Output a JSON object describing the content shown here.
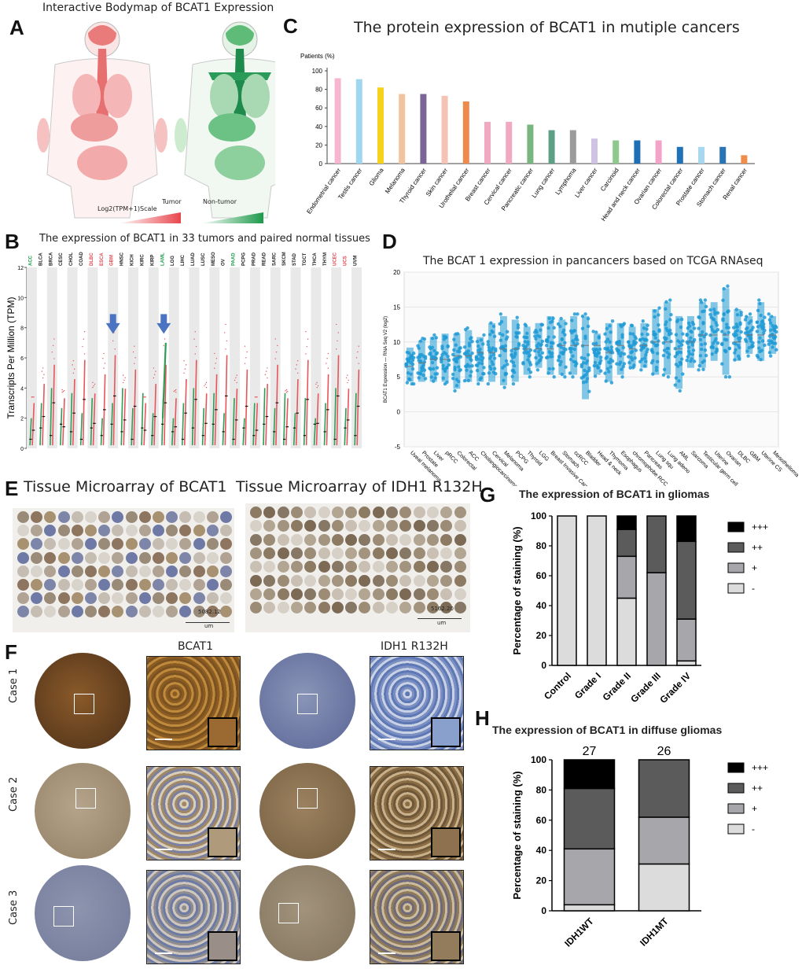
{
  "panels": {
    "A": {
      "label": "A",
      "title": "Interactive Bodymap of BCAT1 Expression",
      "tumor": "Tumor",
      "non_tumor": "Non-tumor",
      "scale": "Log2(TPM+1)Scale"
    },
    "B": {
      "label": "B",
      "title": "The expression of BCAT1 in 33 tumors and paired normal tissues",
      "ylabel": "Transcripts Per Million (TPM)",
      "yticks": [
        "0",
        "2",
        "4",
        "6",
        "8",
        "10",
        "12"
      ],
      "cancers": [
        "ACC",
        "BLCA",
        "BRCA",
        "CESC",
        "CHOL",
        "COAD",
        "DLBC",
        "ESCA",
        "GBM",
        "HNSC",
        "KICH",
        "KIRC",
        "KIRP",
        "LAML",
        "LGG",
        "LIHC",
        "LUAD",
        "LUSC",
        "MESO",
        "OV",
        "PAAD",
        "PCPG",
        "PRAD",
        "READ",
        "SARC",
        "SKCM",
        "STAD",
        "TGCT",
        "THCA",
        "THYM",
        "UCEC",
        "UCS",
        "UVM"
      ],
      "label_colors": {
        "green": [
          "ACC",
          "LAML",
          "PAAD"
        ],
        "red": [
          "DLBC",
          "ESCA",
          "GBM",
          "UCEC",
          "UCS"
        ]
      }
    },
    "C": {
      "label": "C",
      "title": "The protein expression of BCAT1 in mutiple cancers"
    },
    "D": {
      "label": "D",
      "title": "The BCAT 1 expression in pancancers based on TCGA RNAseq",
      "ylabel": "BCAT1 Expression — RNA Seq V2 (log2)"
    },
    "E": {
      "label": "E",
      "title_left": "Tissue Microarray of BCAT1",
      "title_right": "Tissue Microarray of IDH1 R132H",
      "scale_left": "5082.12",
      "scale_right": "5162.20",
      "unit": "um"
    },
    "F": {
      "label": "F",
      "col_bcat1": "BCAT1",
      "col_idh1": "IDH1 R132H",
      "cases": [
        "Case 1",
        "Case 2",
        "Case 3"
      ]
    },
    "G": {
      "label": "G",
      "title": "The expression of BCAT1 in gliomas"
    },
    "H": {
      "label": "H",
      "title": "The expression of BCAT1 in diffuse gliomas"
    }
  },
  "chart_data": [
    {
      "id": "C",
      "type": "bar",
      "ylabel": "Patients (%)",
      "ylim": [
        0,
        100
      ],
      "yticks": [
        0,
        20,
        40,
        60,
        80,
        100
      ],
      "categories": [
        "Endometrial cancer",
        "Testis cancer",
        "Glioma",
        "Melanoma",
        "Thyroid cancer",
        "Skin cancer",
        "Urothelial cancer",
        "Breast cancer",
        "Cervical cancer",
        "Pancreatic cancer",
        "Lung cancer",
        "Lymphoma",
        "Liver cancer",
        "Carcinoid",
        "Head and neck cancer",
        "Ovarian cancer",
        "Colorectal cancer",
        "Prostate cancer",
        "Stomach cancer",
        "Renal cancer"
      ],
      "values": [
        92,
        91,
        82,
        75,
        75,
        73,
        67,
        45,
        45,
        42,
        36,
        36,
        27,
        25,
        25,
        25,
        18,
        18,
        18,
        9
      ],
      "colors": [
        "#f7b6cf",
        "#9fd6f0",
        "#f5d21b",
        "#f2c49e",
        "#7b6596",
        "#f4c3b4",
        "#ef8a4d",
        "#f1a9c1",
        "#f1a9c1",
        "#79b57f",
        "#5e9f85",
        "#9b9b9b",
        "#cfc3e4",
        "#8cc98b",
        "#1e6fb4",
        "#f3a3c8",
        "#1f72b8",
        "#a8d8f0",
        "#2774b6",
        "#ef8d4a"
      ]
    },
    {
      "id": "D",
      "type": "scatter",
      "ylim": [
        -5,
        20
      ],
      "yticks": [
        -5,
        0,
        5,
        10,
        15,
        20
      ],
      "categories": [
        "Uveal melanoma",
        "Prostate",
        "Liver",
        "pRCC",
        "Colorectal",
        "ACC",
        "Cholangiocarcinoma",
        "Cervical",
        "Melanoma",
        "PCPG",
        "Thyroid",
        "LGG",
        "Breast Invasive Carcinoma Breast",
        "Stomach",
        "ccRCC",
        "Bladder",
        "Head & neck",
        "Thymoma",
        "Esophagus",
        "chromophobe RCC",
        "Pancreas",
        "Lung squ",
        "Lung adeno",
        "AML",
        "Sarcoma",
        "Testicular germ cell",
        "Uterine",
        "Ovarian",
        "DLBC",
        "GBM",
        "Uterine CS",
        "Mesothelioma"
      ],
      "medians": [
        6.5,
        7,
        7.5,
        7.5,
        8,
        8,
        8.5,
        8.5,
        9,
        9,
        9,
        9,
        9,
        9.5,
        9.5,
        9.5,
        9.5,
        8.5,
        9.5,
        9,
        9.5,
        10,
        10,
        9,
        10,
        11,
        11,
        11,
        10,
        11,
        11,
        11
      ],
      "ranges": [
        [
          4,
          9.5
        ],
        [
          4,
          10.5
        ],
        [
          4,
          11
        ],
        [
          4,
          11.5
        ],
        [
          3,
          11.5
        ],
        [
          4,
          12
        ],
        [
          4,
          11
        ],
        [
          4,
          13
        ],
        [
          3.5,
          14
        ],
        [
          4,
          13.5
        ],
        [
          5,
          12.5
        ],
        [
          6,
          13
        ],
        [
          5,
          14
        ],
        [
          5,
          13.5
        ],
        [
          5,
          14
        ],
        [
          1.5,
          14
        ],
        [
          5,
          11.5
        ],
        [
          4,
          13
        ],
        [
          5,
          13
        ],
        [
          6,
          12.5
        ],
        [
          6,
          13
        ],
        [
          5,
          15
        ],
        [
          5,
          16
        ],
        [
          3,
          14
        ],
        [
          6,
          14
        ],
        [
          6,
          16
        ],
        [
          7,
          16
        ],
        [
          5,
          18
        ],
        [
          7,
          15
        ],
        [
          8,
          14
        ],
        [
          7,
          16
        ],
        [
          8,
          14
        ]
      ]
    },
    {
      "id": "G",
      "type": "bar",
      "stacked": true,
      "ylabel": "Percentage of  staining (%)",
      "ylim": [
        0,
        100
      ],
      "yticks": [
        0,
        20,
        40,
        60,
        80,
        100
      ],
      "categories": [
        "Control",
        "Grade I",
        "Grade II",
        "Grade III",
        "Grade IV"
      ],
      "series": [
        {
          "name": "-",
          "color": "#dcdcdc",
          "values": [
            100,
            100,
            45,
            0,
            3
          ]
        },
        {
          "name": "+",
          "color": "#a7a7ab",
          "values": [
            0,
            0,
            28,
            62,
            28
          ]
        },
        {
          "name": "++",
          "color": "#5b5b5b",
          "values": [
            0,
            0,
            18,
            38,
            52
          ]
        },
        {
          "name": "+++",
          "color": "#000000",
          "values": [
            0,
            0,
            9,
            0,
            17
          ]
        }
      ]
    },
    {
      "id": "H",
      "type": "bar",
      "stacked": true,
      "ylabel": "Percentage of  staining (%)",
      "ylim": [
        0,
        100
      ],
      "yticks": [
        0,
        20,
        40,
        60,
        80,
        100
      ],
      "categories": [
        "IDH1WT",
        "IDH1MT"
      ],
      "counts": [
        "27",
        "26"
      ],
      "series": [
        {
          "name": "-",
          "color": "#dcdcdc",
          "values": [
            4,
            31
          ]
        },
        {
          "name": "+",
          "color": "#a7a7ab",
          "values": [
            37,
            31
          ]
        },
        {
          "name": "++",
          "color": "#5b5b5b",
          "values": [
            40,
            38
          ]
        },
        {
          "name": "+++",
          "color": "#000000",
          "values": [
            19,
            0
          ]
        }
      ]
    }
  ]
}
